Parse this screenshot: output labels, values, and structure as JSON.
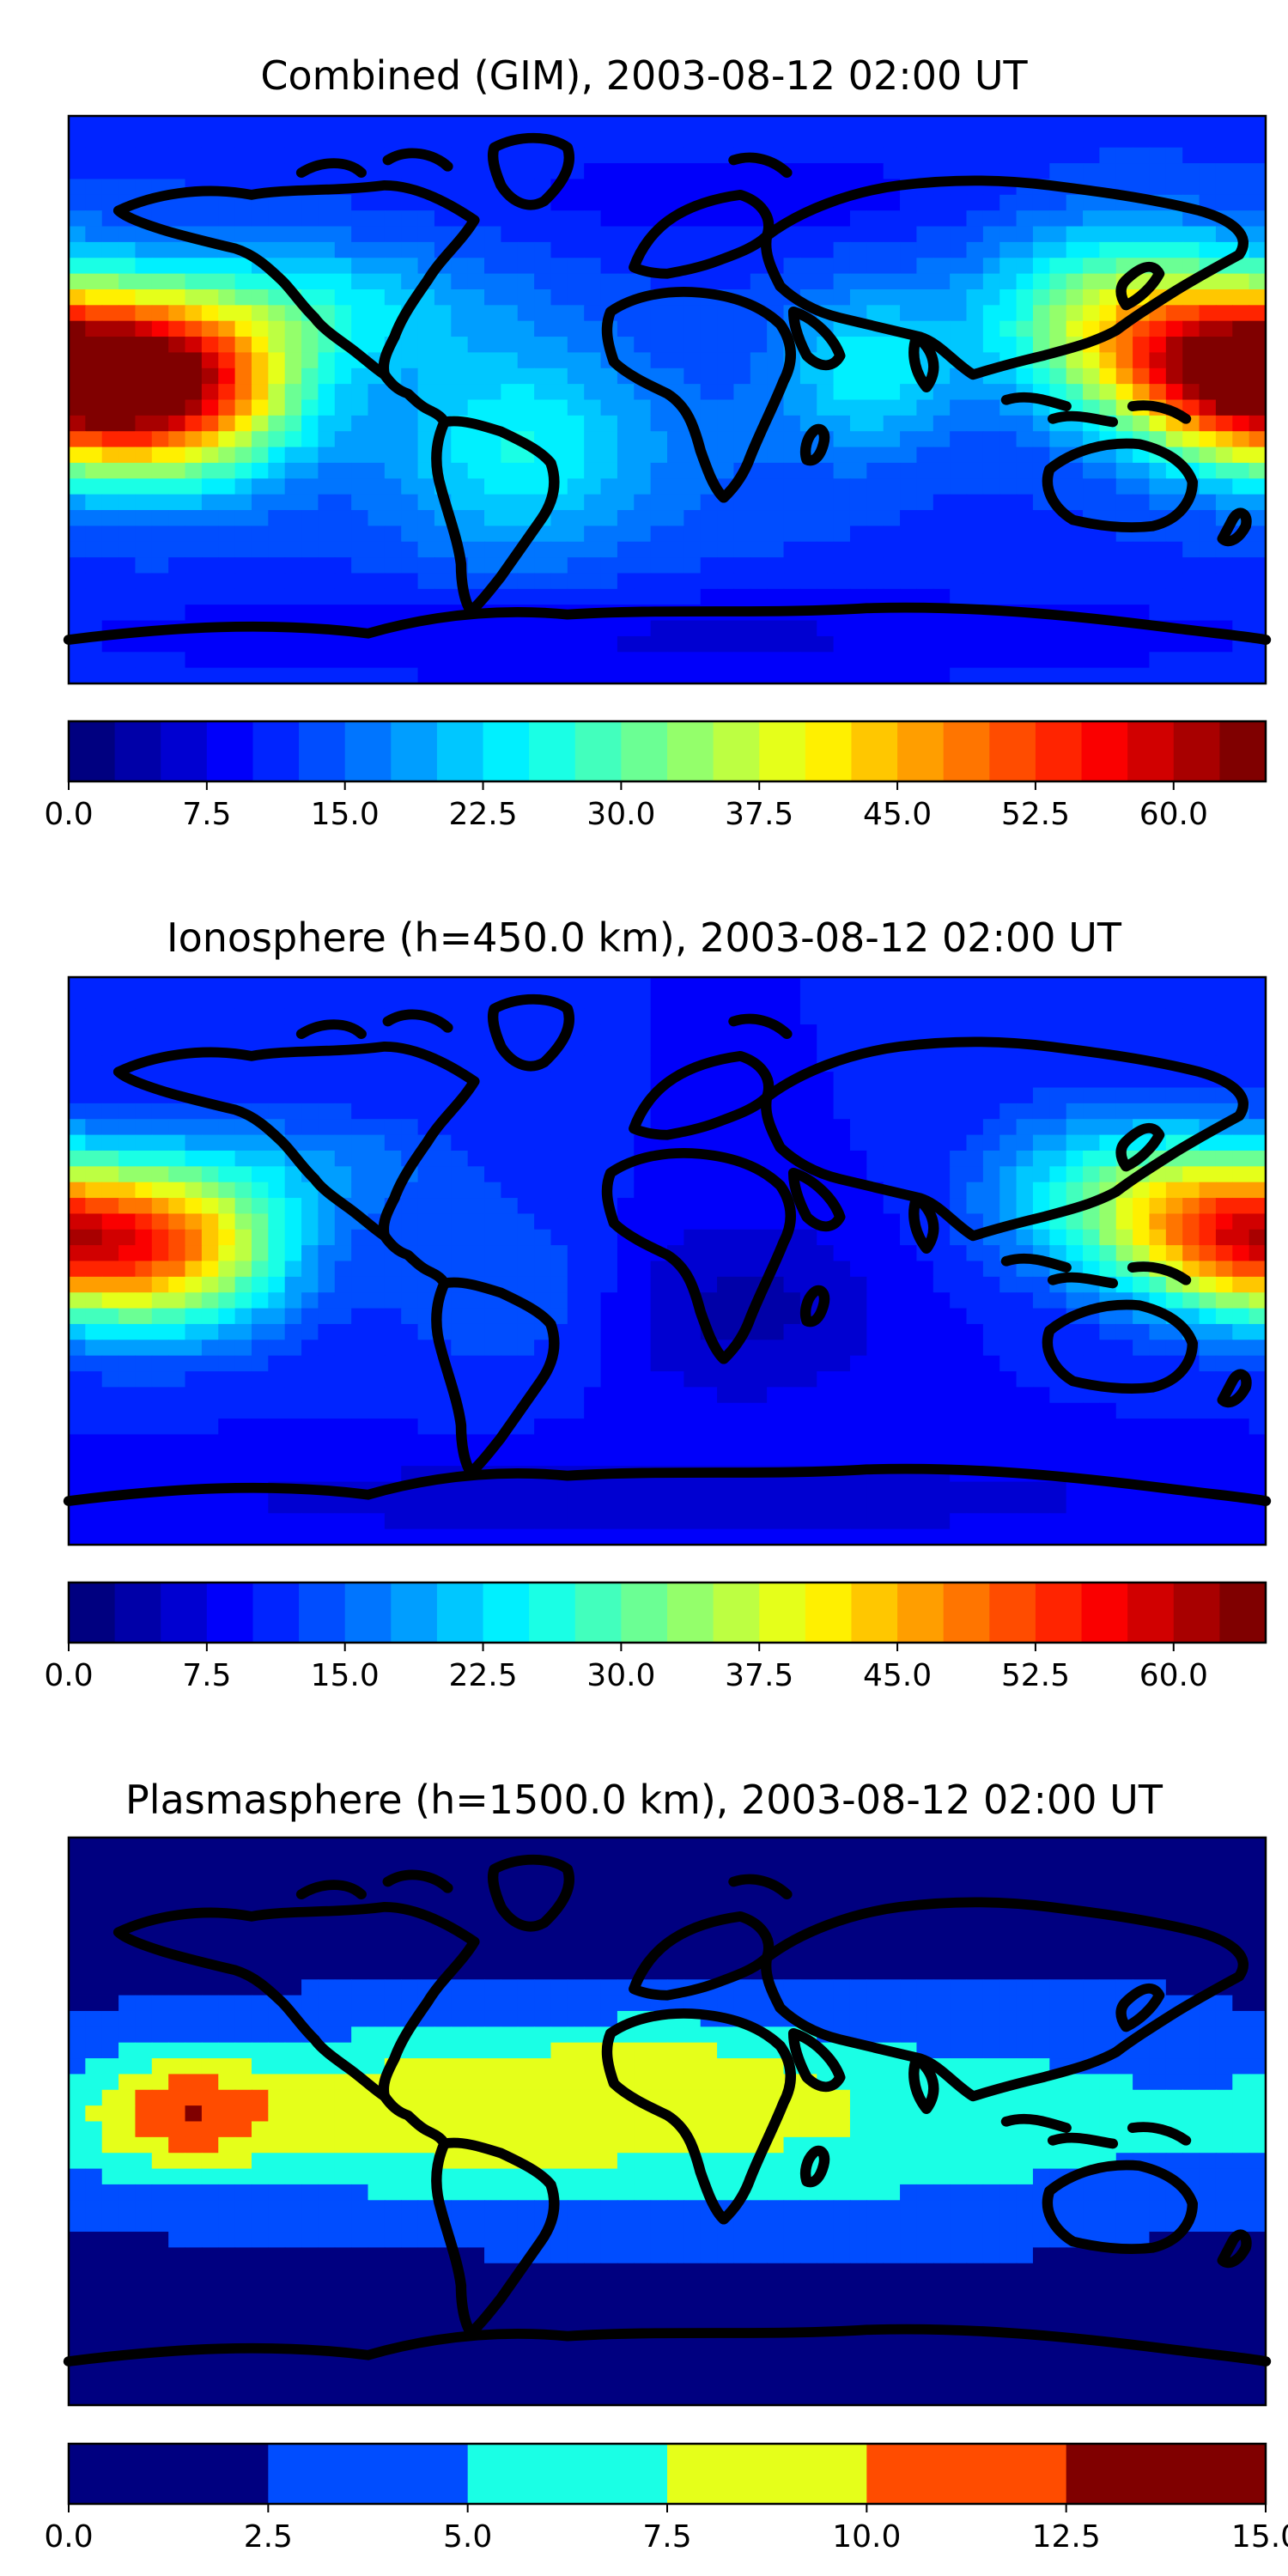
{
  "chart_data": [
    {
      "type": "heatmap",
      "title": "Combined (GIM), 2003-08-12 02:00 UT",
      "colormap": "jet",
      "projection": "equirectangular world map with coastlines",
      "colorbar": {
        "range": [
          0.0,
          65.0
        ],
        "levels": [
          0.0,
          2.5,
          5.0,
          7.5,
          10.0,
          12.5,
          15.0,
          17.5,
          20.0,
          22.5,
          25.0,
          27.5,
          30.0,
          32.5,
          35.0,
          37.5,
          40.0,
          42.5,
          45.0,
          47.5,
          50.0,
          52.5,
          55.0,
          57.5,
          60.0,
          62.5,
          65.0
        ],
        "ticks": [
          "0.0",
          "7.5",
          "15.0",
          "22.5",
          "30.0",
          "37.5",
          "45.0",
          "52.5",
          "60.0"
        ],
        "tick_values": [
          0.0,
          7.5,
          15.0,
          22.5,
          30.0,
          37.5,
          45.0,
          52.5,
          60.0
        ]
      },
      "background_value": 12.0,
      "features": [
        {
          "lon": -150,
          "lat": 5,
          "value": 60,
          "rx": 38,
          "ry": 28
        },
        {
          "lon": 170,
          "lat": 8,
          "value": 52,
          "rx": 35,
          "ry": 26
        },
        {
          "lon": 135,
          "lat": 25,
          "value": 35,
          "rx": 40,
          "ry": 28
        },
        {
          "lon": -100,
          "lat": 30,
          "value": 22,
          "rx": 45,
          "ry": 20
        },
        {
          "lon": -45,
          "lat": -15,
          "value": 25,
          "rx": 40,
          "ry": 35
        },
        {
          "lon": 60,
          "lat": 10,
          "value": 24,
          "rx": 25,
          "ry": 25
        },
        {
          "lon": 20,
          "lat": -15,
          "value": 14,
          "rx": 40,
          "ry": 30
        },
        {
          "lon": 20,
          "lat": 65,
          "value": 8,
          "rx": 70,
          "ry": 15
        },
        {
          "lon": 0,
          "lat": -75,
          "value": 7,
          "rx": 180,
          "ry": 15
        }
      ]
    },
    {
      "type": "heatmap",
      "title": "Ionosphere  (h=450.0 km), 2003-08-12 02:00 UT",
      "colormap": "jet",
      "projection": "equirectangular world map with coastlines",
      "colorbar": {
        "range": [
          0.0,
          65.0
        ],
        "levels": [
          0.0,
          2.5,
          5.0,
          7.5,
          10.0,
          12.5,
          15.0,
          17.5,
          20.0,
          22.5,
          25.0,
          27.5,
          30.0,
          32.5,
          35.0,
          37.5,
          40.0,
          42.5,
          45.0,
          47.5,
          50.0,
          52.5,
          55.0,
          57.5,
          60.0,
          62.5,
          65.0
        ],
        "ticks": [
          "0.0",
          "7.5",
          "15.0",
          "22.5",
          "30.0",
          "37.5",
          "45.0",
          "52.5",
          "60.0"
        ],
        "tick_values": [
          0.0,
          7.5,
          15.0,
          22.5,
          30.0,
          37.5,
          45.0,
          52.5,
          60.0
        ]
      },
      "background_value": 10.0,
      "features": [
        {
          "lon": -150,
          "lat": 5,
          "value": 46,
          "rx": 36,
          "ry": 26
        },
        {
          "lon": 170,
          "lat": 8,
          "value": 42,
          "rx": 32,
          "ry": 24
        },
        {
          "lon": 135,
          "lat": 20,
          "value": 28,
          "rx": 38,
          "ry": 26
        },
        {
          "lon": -45,
          "lat": -10,
          "value": 15,
          "rx": 38,
          "ry": 30
        },
        {
          "lon": 20,
          "lat": -15,
          "value": 4,
          "rx": 45,
          "ry": 30
        },
        {
          "lon": -100,
          "lat": 30,
          "value": 16,
          "rx": 40,
          "ry": 18
        },
        {
          "lon": 0,
          "lat": -75,
          "value": 6,
          "rx": 180,
          "ry": 15
        }
      ]
    },
    {
      "type": "heatmap",
      "title": "Plasmasphere (h=1500.0 km), 2003-08-12 02:00 UT",
      "colormap": "jet",
      "projection": "equirectangular world map with coastlines",
      "colorbar": {
        "range": [
          0.0,
          15.0
        ],
        "levels": [
          0.0,
          2.5,
          5.0,
          7.5,
          10.0,
          12.5,
          15.0
        ],
        "ticks": [
          "0.0",
          "2.5",
          "5.0",
          "7.5",
          "10.0",
          "12.5",
          "15.0"
        ],
        "tick_values": [
          0.0,
          2.5,
          5.0,
          7.5,
          10.0,
          12.5,
          15.0
        ]
      },
      "background_value": 1.5,
      "features": [
        {
          "lon": 0,
          "lat": 0,
          "value": 7.5,
          "rx": 220,
          "ry": 32
        },
        {
          "lon": -145,
          "lat": 3,
          "value": 8.5,
          "rx": 30,
          "ry": 18
        },
        {
          "lon": -60,
          "lat": 10,
          "value": 4.5,
          "rx": 50,
          "ry": 25
        },
        {
          "lon": 10,
          "lat": 15,
          "value": 4.0,
          "rx": 40,
          "ry": 20
        },
        {
          "lon": 120,
          "lat": 35,
          "value": 3.5,
          "rx": 30,
          "ry": 10
        },
        {
          "lon": 80,
          "lat": -35,
          "value": 2.5,
          "rx": 30,
          "ry": 10
        }
      ]
    }
  ]
}
